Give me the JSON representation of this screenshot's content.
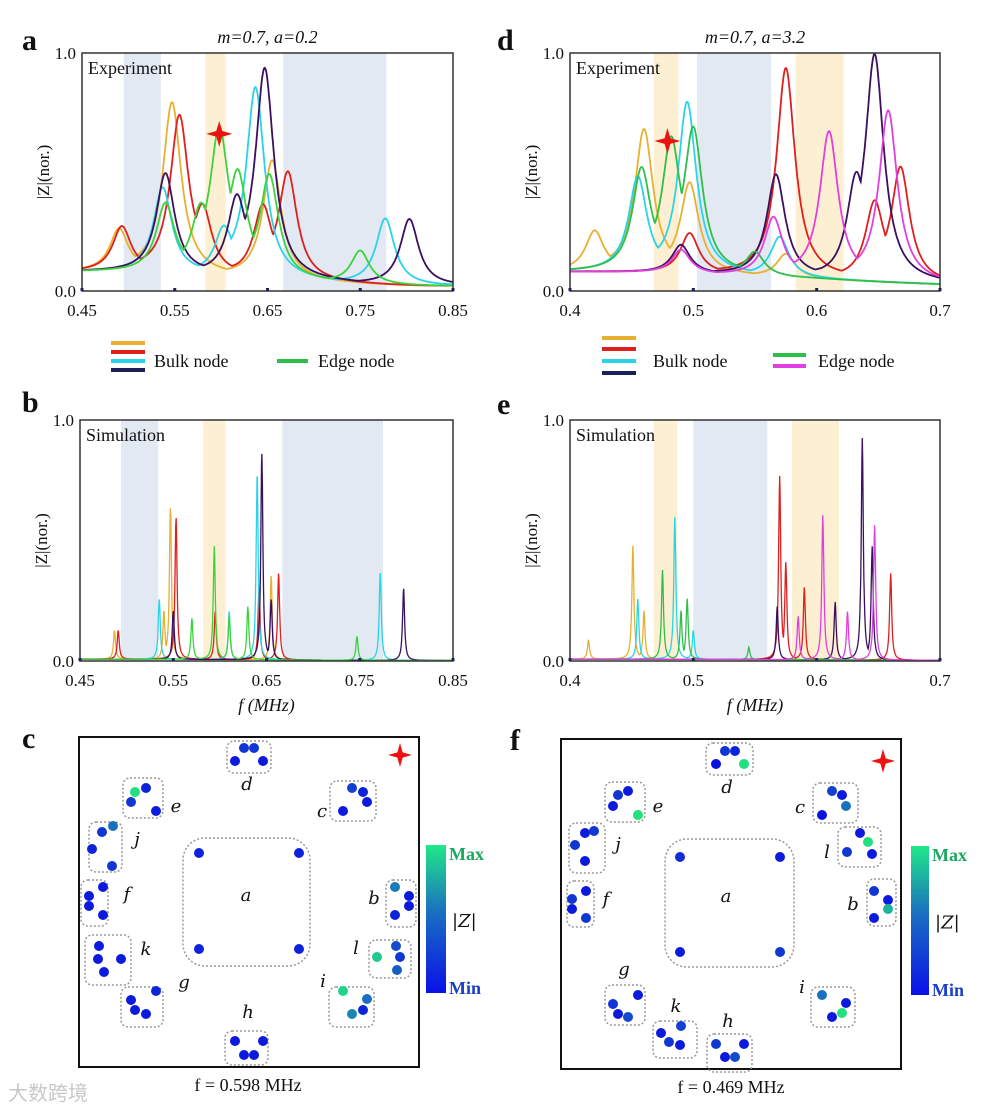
{
  "colors": {
    "yellow": "#e8b030",
    "red": "#e01e1e",
    "cyan": "#2ad4e8",
    "navy": "#3a1060",
    "green": "#2ebf4a",
    "lime": "#3cd23c",
    "magenta": "#e040e0",
    "band_blue": "#e3e9f2",
    "band_yellow": "#fdf0d2",
    "star": "#ee1111"
  },
  "watermark": "大数跨境",
  "legend_left": {
    "bulk_label": "Bulk node",
    "edge_label": "Edge node",
    "bulk_colors": [
      "#e8b030",
      "#e01e1e",
      "#2ad4e8",
      "#1a1f5a"
    ],
    "edge_colors": [
      "#2ebf4a"
    ]
  },
  "legend_right": {
    "bulk_label": "Bulk node",
    "edge_label": "Edge node",
    "bulk_colors": [
      "#e8b030",
      "#e01e1e",
      "#2ad4e8",
      "#1a1f5a"
    ],
    "edge_colors": [
      "#2ebf4a",
      "#e040e0"
    ]
  },
  "chart_data": [
    {
      "id": "a",
      "panel_label": "a",
      "type": "line",
      "title": "m=0.7, a=0.2",
      "inset_label": "Experiment",
      "ylabel": "|Z|(nor.)",
      "xlabel": "",
      "xlim": [
        0.45,
        0.85
      ],
      "ylim": [
        0,
        1
      ],
      "xticks": [
        "0.45",
        "0.55",
        "0.65",
        "0.75",
        "0.85"
      ],
      "yticks": [
        "0.0",
        "1.0"
      ],
      "peak_width": 0.012,
      "baseline": 0.05,
      "marker_star": {
        "x": 0.598,
        "y": 0.66
      },
      "bands": [
        {
          "from": 0.495,
          "to": 0.535,
          "kind": "blue"
        },
        {
          "from": 0.583,
          "to": 0.605,
          "kind": "yellow"
        },
        {
          "from": 0.667,
          "to": 0.778,
          "kind": "blue"
        }
      ],
      "series": [
        {
          "name": "bulk-yellow",
          "role": "Bulk node",
          "color": "#e8b030",
          "peaks": [
            [
              0.49,
              0.18
            ],
            [
              0.547,
              0.72
            ],
            [
              0.655,
              0.5
            ]
          ]
        },
        {
          "name": "bulk-red",
          "role": "Bulk node",
          "color": "#e01e1e",
          "peaks": [
            [
              0.493,
              0.19
            ],
            [
              0.555,
              0.66
            ],
            [
              0.58,
              0.28
            ],
            [
              0.645,
              0.3
            ],
            [
              0.672,
              0.45
            ]
          ]
        },
        {
          "name": "bulk-cyan",
          "role": "Bulk node",
          "color": "#2ad4e8",
          "peaks": [
            [
              0.537,
              0.36
            ],
            [
              0.603,
              0.2
            ],
            [
              0.637,
              0.8
            ],
            [
              0.777,
              0.28
            ]
          ]
        },
        {
          "name": "bulk-navy",
          "role": "Bulk node",
          "color": "#3a1060",
          "peaks": [
            [
              0.54,
              0.42
            ],
            [
              0.617,
              0.33
            ],
            [
              0.647,
              0.88
            ],
            [
              0.803,
              0.28
            ]
          ]
        },
        {
          "name": "edge-green",
          "role": "Edge node",
          "color": "#3cd23c",
          "peaks": [
            [
              0.54,
              0.29
            ],
            [
              0.578,
              0.27
            ],
            [
              0.598,
              0.6
            ],
            [
              0.618,
              0.42
            ],
            [
              0.652,
              0.43
            ],
            [
              0.75,
              0.14
            ]
          ]
        }
      ]
    },
    {
      "id": "b",
      "panel_label": "b",
      "type": "line",
      "title": "",
      "inset_label": "Simulation",
      "ylabel": "|Z|(nor.)",
      "xlabel": "f (MHz)",
      "xlim": [
        0.45,
        0.85
      ],
      "ylim": [
        0,
        1
      ],
      "xticks": [
        "0.45",
        "0.55",
        "0.65",
        "0.75",
        "0.85"
      ],
      "yticks": [
        "0.0",
        "1.0"
      ],
      "peak_width": 0.0013,
      "baseline": 0.005,
      "bands": [
        {
          "from": 0.494,
          "to": 0.534,
          "kind": "blue"
        },
        {
          "from": 0.582,
          "to": 0.606,
          "kind": "yellow"
        },
        {
          "from": 0.667,
          "to": 0.775,
          "kind": "blue"
        }
      ],
      "series": [
        {
          "name": "bulk-yellow",
          "role": "Bulk node",
          "color": "#e8b030",
          "peaks": [
            [
              0.487,
              0.12
            ],
            [
              0.54,
              0.2
            ],
            [
              0.547,
              0.63
            ],
            [
              0.655,
              0.35
            ]
          ]
        },
        {
          "name": "bulk-red",
          "role": "Bulk node",
          "color": "#e01e1e",
          "peaks": [
            [
              0.491,
              0.12
            ],
            [
              0.553,
              0.59
            ],
            [
              0.595,
              0.2
            ],
            [
              0.642,
              0.3
            ],
            [
              0.663,
              0.36
            ]
          ]
        },
        {
          "name": "bulk-cyan",
          "role": "Bulk node",
          "color": "#2ad4e8",
          "peaks": [
            [
              0.535,
              0.25
            ],
            [
              0.61,
              0.2
            ],
            [
              0.64,
              0.78
            ],
            [
              0.772,
              0.37
            ]
          ]
        },
        {
          "name": "bulk-navy",
          "role": "Bulk node",
          "color": "#3a1060",
          "peaks": [
            [
              0.55,
              0.2
            ],
            [
              0.645,
              0.86
            ],
            [
              0.655,
              0.25
            ],
            [
              0.797,
              0.3
            ]
          ]
        },
        {
          "name": "edge-green",
          "role": "Edge node",
          "color": "#3cd23c",
          "peaks": [
            [
              0.57,
              0.17
            ],
            [
              0.594,
              0.47
            ],
            [
              0.61,
              0.18
            ],
            [
              0.63,
              0.22
            ],
            [
              0.747,
              0.1
            ]
          ]
        }
      ]
    },
    {
      "id": "d",
      "panel_label": "d",
      "type": "line",
      "title": "m=0.7, a=3.2",
      "inset_label": "Experiment",
      "ylabel": "|Z|(nor.)",
      "xlabel": "",
      "xlim": [
        0.4,
        0.7
      ],
      "ylim": [
        0,
        1
      ],
      "xticks": [
        "0.4",
        "0.5",
        "0.6",
        "0.7"
      ],
      "yticks": [
        "0.0",
        "1.0"
      ],
      "peak_width": 0.009,
      "baseline": 0.05,
      "marker_star": {
        "x": 0.479,
        "y": 0.63
      },
      "bands": [
        {
          "from": 0.468,
          "to": 0.488,
          "kind": "yellow"
        },
        {
          "from": 0.503,
          "to": 0.563,
          "kind": "blue"
        },
        {
          "from": 0.583,
          "to": 0.622,
          "kind": "yellow"
        }
      ],
      "series": [
        {
          "name": "bulk-yellow",
          "role": "Bulk node",
          "color": "#e8b030",
          "peaks": [
            [
              0.42,
              0.17
            ],
            [
              0.46,
              0.6
            ],
            [
              0.497,
              0.38
            ],
            [
              0.575,
              0.1
            ]
          ]
        },
        {
          "name": "bulk-red",
          "role": "Bulk node",
          "color": "#e01e1e",
          "peaks": [
            [
              0.497,
              0.17
            ],
            [
              0.575,
              0.88
            ],
            [
              0.647,
              0.33
            ],
            [
              0.668,
              0.48
            ]
          ]
        },
        {
          "name": "bulk-cyan",
          "role": "Bulk node",
          "color": "#2ad4e8",
          "peaks": [
            [
              0.455,
              0.4
            ],
            [
              0.495,
              0.72
            ],
            [
              0.57,
              0.17
            ]
          ]
        },
        {
          "name": "bulk-navy",
          "role": "Bulk node",
          "color": "#3a1060",
          "peaks": [
            [
              0.49,
              0.12
            ],
            [
              0.567,
              0.43
            ],
            [
              0.632,
              0.42
            ],
            [
              0.647,
              0.94
            ]
          ]
        },
        {
          "name": "edge-green",
          "role": "Edge node",
          "color": "#2ebf4a",
          "peaks": [
            [
              0.458,
              0.43
            ],
            [
              0.482,
              0.55
            ],
            [
              0.5,
              0.6
            ],
            [
              0.55,
              0.1
            ]
          ]
        },
        {
          "name": "edge-magenta",
          "role": "Edge node",
          "color": "#e040e0",
          "peaks": [
            [
              0.49,
              0.1
            ],
            [
              0.565,
              0.25
            ],
            [
              0.61,
              0.62
            ],
            [
              0.658,
              0.72
            ]
          ]
        }
      ]
    },
    {
      "id": "e",
      "panel_label": "e",
      "type": "line",
      "title": "",
      "inset_label": "Simulation",
      "ylabel": "|Z|(nor.)",
      "xlabel": "f (MHz)",
      "xlim": [
        0.4,
        0.7
      ],
      "ylim": [
        0,
        1
      ],
      "xticks": [
        "0.4",
        "0.5",
        "0.6",
        "0.7"
      ],
      "yticks": [
        "0.0",
        "1.0"
      ],
      "peak_width": 0.001,
      "baseline": 0.005,
      "bands": [
        {
          "from": 0.468,
          "to": 0.487,
          "kind": "yellow"
        },
        {
          "from": 0.5,
          "to": 0.56,
          "kind": "blue"
        },
        {
          "from": 0.58,
          "to": 0.618,
          "kind": "yellow"
        }
      ],
      "series": [
        {
          "name": "bulk-yellow",
          "role": "Bulk node",
          "color": "#e8b030",
          "peaks": [
            [
              0.415,
              0.08
            ],
            [
              0.451,
              0.47
            ],
            [
              0.46,
              0.2
            ]
          ]
        },
        {
          "name": "bulk-red",
          "role": "Bulk node",
          "color": "#e01e1e",
          "peaks": [
            [
              0.57,
              0.76
            ],
            [
              0.575,
              0.4
            ],
            [
              0.59,
              0.3
            ],
            [
              0.66,
              0.36
            ]
          ]
        },
        {
          "name": "bulk-cyan",
          "role": "Bulk node",
          "color": "#2ad4e8",
          "peaks": [
            [
              0.455,
              0.25
            ],
            [
              0.485,
              0.59
            ],
            [
              0.5,
              0.12
            ]
          ]
        },
        {
          "name": "bulk-navy",
          "role": "Bulk node",
          "color": "#3a1060",
          "peaks": [
            [
              0.568,
              0.22
            ],
            [
              0.615,
              0.24
            ],
            [
              0.637,
              0.92
            ],
            [
              0.645,
              0.47
            ]
          ]
        },
        {
          "name": "edge-green",
          "role": "Edge node",
          "color": "#2ebf4a",
          "peaks": [
            [
              0.475,
              0.37
            ],
            [
              0.49,
              0.2
            ],
            [
              0.495,
              0.25
            ],
            [
              0.545,
              0.05
            ]
          ]
        },
        {
          "name": "edge-magenta",
          "role": "Edge node",
          "color": "#e040e0",
          "peaks": [
            [
              0.585,
              0.18
            ],
            [
              0.605,
              0.6
            ],
            [
              0.625,
              0.2
            ],
            [
              0.647,
              0.56
            ]
          ]
        }
      ]
    },
    {
      "id": "c",
      "panel_label": "c",
      "type": "heatmap",
      "caption": "f = 0.598 MHz",
      "colorbar": {
        "max": "Max",
        "min": "Min",
        "label": "|Z|"
      },
      "clusters": [
        {
          "label": "d",
          "values": [
            0.2,
            0.2,
            0.05,
            0.05
          ]
        },
        {
          "label": "e",
          "values": [
            1,
            0.1,
            0.2,
            0.05
          ]
        },
        {
          "label": "c",
          "values": [
            0.25,
            0.1,
            0.05,
            0.05
          ]
        },
        {
          "label": "j",
          "values": [
            0.2,
            0.5,
            0.1,
            0.2
          ]
        },
        {
          "label": "f",
          "values": [
            0.05,
            0.05,
            0.05,
            0.05
          ]
        },
        {
          "label": "a",
          "values": [
            0.1,
            0.1,
            0.1,
            0.1
          ]
        },
        {
          "label": "b",
          "values": [
            0.55,
            0.05,
            0.05,
            0.1
          ]
        },
        {
          "label": "k",
          "values": [
            0.05,
            0.05,
            0.05,
            0.05
          ]
        },
        {
          "label": "l",
          "values": [
            0.9,
            0.3,
            0.2,
            0.4
          ]
        },
        {
          "label": "g",
          "values": [
            0.05,
            0.1,
            0.05,
            0.05
          ]
        },
        {
          "label": "i",
          "values": [
            0.95,
            0.5,
            0.1,
            0.6
          ]
        },
        {
          "label": "h",
          "values": [
            0.05,
            0.05,
            0.05,
            0.05
          ]
        }
      ]
    },
    {
      "id": "f",
      "panel_label": "f",
      "type": "heatmap",
      "caption": "f = 0.469 MHz",
      "colorbar": {
        "max": "Max",
        "min": "Min",
        "label": "|Z|"
      },
      "clusters": [
        {
          "label": "d",
          "values": [
            0.2,
            0.1,
            0,
            1
          ]
        },
        {
          "label": "e",
          "values": [
            0.2,
            0.05,
            0.05,
            1
          ]
        },
        {
          "label": "c",
          "values": [
            0.25,
            0.05,
            0.5,
            0
          ]
        },
        {
          "label": "j",
          "values": [
            0.05,
            0.2,
            0.2,
            0.05
          ]
        },
        {
          "label": "l",
          "values": [
            0.05,
            1,
            0.2,
            0.05
          ]
        },
        {
          "label": "f",
          "values": [
            0.05,
            0.2,
            0.05,
            0.2
          ]
        },
        {
          "label": "a",
          "values": [
            0.15,
            0.05,
            0.05,
            0.2
          ]
        },
        {
          "label": "b",
          "values": [
            0.2,
            0.05,
            0.8,
            0.05
          ]
        },
        {
          "label": "g",
          "values": [
            0.05,
            0.2,
            0.05,
            0.3
          ]
        },
        {
          "label": "i",
          "values": [
            0.5,
            0.05,
            0.05,
            1
          ]
        },
        {
          "label": "k",
          "values": [
            0.25,
            0.05,
            0.2,
            0.05
          ]
        },
        {
          "label": "h",
          "values": [
            0.2,
            0.05,
            0.05,
            0.3
          ]
        }
      ]
    }
  ]
}
